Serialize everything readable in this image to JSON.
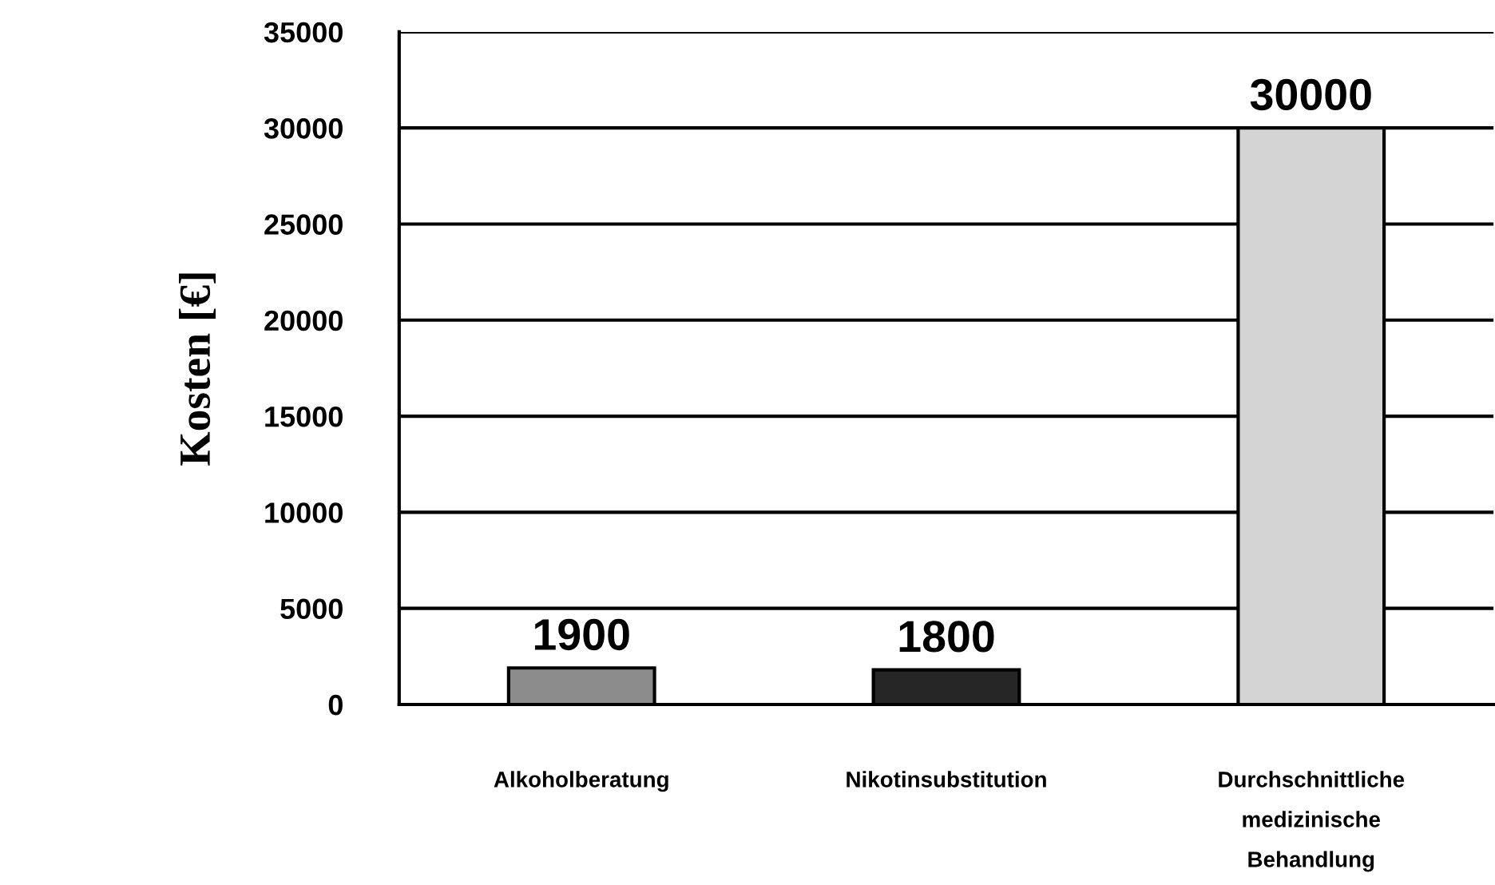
{
  "chart_data": {
    "type": "bar",
    "ylabel": "Kosten [€]",
    "categories": [
      "Alkoholberatung",
      "Nikotinsubstitution",
      "Durchschnittliche\nmedizinische\nBehandlung"
    ],
    "values": [
      1900,
      1800,
      30000
    ],
    "colors": [
      "#8c8c8c",
      "#262626",
      "#d4d4d4"
    ],
    "ylim": [
      0,
      35000
    ],
    "yticks": [
      0,
      5000,
      10000,
      15000,
      20000,
      25000,
      30000,
      35000
    ],
    "grid": "y",
    "data_labels": true
  }
}
